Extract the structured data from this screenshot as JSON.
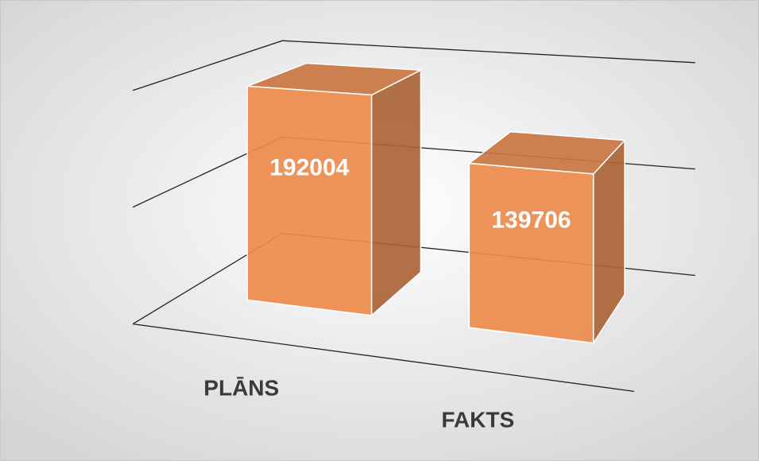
{
  "chart_data": {
    "type": "bar",
    "categories": [
      "PLĀNS",
      "FAKTS"
    ],
    "values": [
      192004,
      139706
    ],
    "color": "#ed8b4c",
    "ylim": [
      0,
      200000
    ],
    "yticks": [
      0,
      100000,
      200000
    ],
    "grid": true
  }
}
